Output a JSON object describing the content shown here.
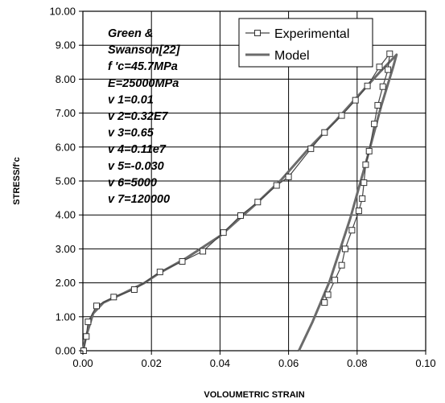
{
  "chart_data": {
    "type": "line",
    "xlabel": "VOLOUMETRIC STRAIN",
    "ylabel": "STRESS/f'c",
    "xlim": [
      0,
      0.1
    ],
    "ylim": [
      0,
      10
    ],
    "x_ticks": [
      "0.00",
      "0.02",
      "0.04",
      "0.06",
      "0.08",
      "0.10"
    ],
    "y_ticks": [
      "0.00",
      "1.00",
      "2.00",
      "3.00",
      "4.00",
      "5.00",
      "6.00",
      "7.00",
      "8.00",
      "9.00",
      "10.00"
    ],
    "grid": true,
    "legend_position": "top-right",
    "annotation_lines": [
      "Green &",
      "Swanson[22]",
      "f 'c=45.7MPa",
      "E=25000MPa",
      "v 1=0.01",
      "v 2=0.32E7",
      "v 3=0.65",
      "v 4=0.11e7",
      "v 5=-0.030",
      "v 6=5000",
      "v 7=120000"
    ],
    "series": [
      {
        "name": "Experimental",
        "color": "#444444",
        "marker": "square",
        "points": [
          [
            0.0002,
            0.0
          ],
          [
            0.001,
            0.42
          ],
          [
            0.0015,
            0.85
          ],
          [
            0.004,
            1.32
          ],
          [
            0.009,
            1.58
          ],
          [
            0.015,
            1.8
          ],
          [
            0.0225,
            2.32
          ],
          [
            0.029,
            2.63
          ],
          [
            0.035,
            2.93
          ],
          [
            0.041,
            3.48
          ],
          [
            0.046,
            3.98
          ],
          [
            0.051,
            4.38
          ],
          [
            0.0565,
            4.87
          ],
          [
            0.06,
            5.12
          ],
          [
            0.0665,
            5.95
          ],
          [
            0.0705,
            6.43
          ],
          [
            0.0755,
            6.93
          ],
          [
            0.0795,
            7.38
          ],
          [
            0.083,
            7.8
          ],
          [
            0.0865,
            8.36
          ],
          [
            0.0895,
            8.75
          ],
          [
            0.089,
            8.28
          ],
          [
            0.0875,
            7.78
          ],
          [
            0.086,
            7.23
          ],
          [
            0.085,
            6.68
          ],
          [
            0.0835,
            5.88
          ],
          [
            0.0825,
            5.48
          ],
          [
            0.082,
            4.95
          ],
          [
            0.0815,
            4.48
          ],
          [
            0.0805,
            4.12
          ],
          [
            0.0785,
            3.55
          ],
          [
            0.0765,
            3.0
          ],
          [
            0.0755,
            2.52
          ],
          [
            0.0735,
            2.08
          ],
          [
            0.0715,
            1.65
          ],
          [
            0.0705,
            1.42
          ]
        ]
      },
      {
        "name": "Model",
        "color": "#6b6b6b",
        "marker": "none",
        "points": [
          [
            0.0,
            0.0
          ],
          [
            0.001,
            0.45
          ],
          [
            0.003,
            1.1
          ],
          [
            0.006,
            1.42
          ],
          [
            0.012,
            1.7
          ],
          [
            0.018,
            2.0
          ],
          [
            0.022,
            2.27
          ],
          [
            0.03,
            2.72
          ],
          [
            0.04,
            3.38
          ],
          [
            0.05,
            4.28
          ],
          [
            0.058,
            5.05
          ],
          [
            0.066,
            5.97
          ],
          [
            0.074,
            6.8
          ],
          [
            0.082,
            7.7
          ],
          [
            0.087,
            8.25
          ],
          [
            0.0915,
            8.72
          ],
          [
            0.0905,
            8.35
          ],
          [
            0.087,
            7.2
          ],
          [
            0.083,
            5.7
          ],
          [
            0.078,
            3.9
          ],
          [
            0.072,
            2.05
          ],
          [
            0.067,
            0.85
          ],
          [
            0.063,
            0.0
          ]
        ]
      }
    ]
  }
}
